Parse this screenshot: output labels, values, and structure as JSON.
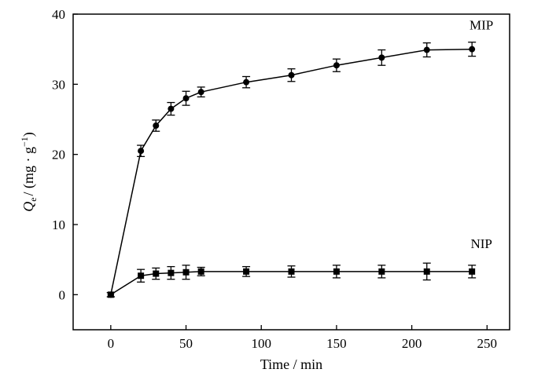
{
  "chart_data": {
    "type": "line",
    "title": "",
    "xlabel": "Time / min",
    "ylabel": {
      "symbol": "Q",
      "subscript": "e",
      "units": "/ (mg · g",
      "units_sup": "−1",
      "units_close": ")"
    },
    "xlim": [
      -25,
      265
    ],
    "ylim": [
      -5,
      40
    ],
    "xticks": [
      0,
      50,
      100,
      150,
      200,
      250
    ],
    "yticks": [
      0,
      10,
      20,
      30,
      40
    ],
    "grid": false,
    "legend": "none",
    "series": [
      {
        "name": "MIP",
        "marker": "circle",
        "color": "#000000",
        "x": [
          0,
          20,
          30,
          40,
          50,
          60,
          90,
          120,
          150,
          180,
          210,
          240
        ],
        "y": [
          0,
          20.5,
          24.1,
          26.5,
          28.0,
          28.9,
          30.3,
          31.3,
          32.7,
          33.8,
          34.9,
          35.0
        ],
        "err": [
          0.3,
          0.8,
          0.8,
          0.9,
          1.0,
          0.7,
          0.8,
          0.9,
          0.9,
          1.1,
          1.0,
          1.0
        ]
      },
      {
        "name": "NIP",
        "marker": "square",
        "color": "#000000",
        "x": [
          0,
          20,
          30,
          40,
          50,
          60,
          90,
          120,
          150,
          180,
          210,
          240
        ],
        "y": [
          0,
          2.7,
          3.0,
          3.1,
          3.2,
          3.3,
          3.3,
          3.3,
          3.3,
          3.3,
          3.3,
          3.3
        ],
        "err": [
          0.3,
          0.9,
          0.8,
          0.9,
          1.0,
          0.6,
          0.7,
          0.8,
          0.9,
          0.9,
          1.2,
          0.9
        ]
      }
    ]
  }
}
